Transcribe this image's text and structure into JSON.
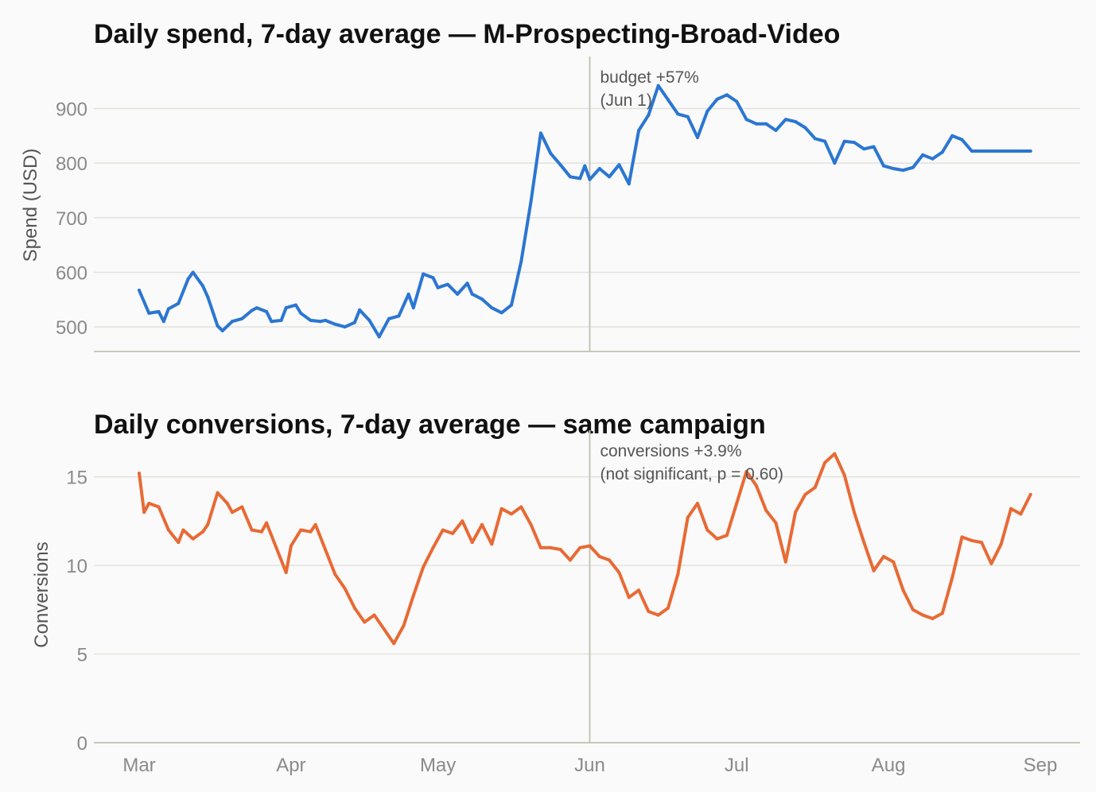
{
  "colors": {
    "spend": "#2b76d2",
    "conversions": "#e86a35"
  },
  "chart_data": [
    {
      "type": "line",
      "title": "Daily spend, 7-day average — M-Prospecting-Broad-Video",
      "ylabel": "Spend (USD)",
      "xlabel": "",
      "ylim": [
        455,
        975
      ],
      "yticks": [
        500,
        600,
        700,
        800,
        900
      ],
      "xlim": [
        "2024-03-01",
        "2024-09-01"
      ],
      "xticks": [],
      "grid": true,
      "annotation": {
        "x": "2024-06-01",
        "lines": [
          "budget +57%",
          "(Jun 1)"
        ]
      },
      "series": [
        {
          "x": [
            "2024-03-01",
            "2024-03-03",
            "2024-03-05",
            "2024-03-06",
            "2024-03-07",
            "2024-03-09",
            "2024-03-11",
            "2024-03-12",
            "2024-03-14",
            "2024-03-15",
            "2024-03-17",
            "2024-03-18",
            "2024-03-20",
            "2024-03-22",
            "2024-03-24",
            "2024-03-25",
            "2024-03-27",
            "2024-03-28",
            "2024-03-30",
            "2024-03-31",
            "2024-04-02",
            "2024-04-03",
            "2024-04-05",
            "2024-04-07",
            "2024-04-08",
            "2024-04-10",
            "2024-04-12",
            "2024-04-14",
            "2024-04-15",
            "2024-04-17",
            "2024-04-19",
            "2024-04-21",
            "2024-04-23",
            "2024-04-25",
            "2024-04-26",
            "2024-04-28",
            "2024-04-30",
            "2024-05-01",
            "2024-05-03",
            "2024-05-05",
            "2024-05-07",
            "2024-05-08",
            "2024-05-10",
            "2024-05-12",
            "2024-05-14",
            "2024-05-16",
            "2024-05-18",
            "2024-05-20",
            "2024-05-22",
            "2024-05-24",
            "2024-05-26",
            "2024-05-28",
            "2024-05-30",
            "2024-05-31",
            "2024-06-01",
            "2024-06-03",
            "2024-06-05",
            "2024-06-07",
            "2024-06-09",
            "2024-06-11",
            "2024-06-13",
            "2024-06-15",
            "2024-06-17",
            "2024-06-19",
            "2024-06-21",
            "2024-06-23",
            "2024-06-25",
            "2024-06-27",
            "2024-06-29",
            "2024-07-01",
            "2024-07-03",
            "2024-07-05",
            "2024-07-07",
            "2024-07-09",
            "2024-07-11",
            "2024-07-13",
            "2024-07-15",
            "2024-07-17",
            "2024-07-19",
            "2024-07-21",
            "2024-07-23",
            "2024-07-25",
            "2024-07-27",
            "2024-07-29",
            "2024-07-31",
            "2024-08-02",
            "2024-08-04",
            "2024-08-06",
            "2024-08-08",
            "2024-08-10",
            "2024-08-12",
            "2024-08-14",
            "2024-08-16",
            "2024-08-18",
            "2024-08-20",
            "2024-08-22",
            "2024-08-24",
            "2024-08-26",
            "2024-08-28",
            "2024-08-30"
          ],
          "y": [
            567,
            525,
            528,
            510,
            533,
            543,
            588,
            600,
            575,
            555,
            502,
            493,
            510,
            515,
            530,
            535,
            528,
            510,
            512,
            535,
            540,
            525,
            512,
            510,
            512,
            505,
            500,
            508,
            531,
            512,
            482,
            515,
            520,
            560,
            535,
            597,
            590,
            572,
            578,
            560,
            580,
            560,
            551,
            535,
            526,
            540,
            620,
            730,
            855,
            818,
            797,
            775,
            772,
            795,
            770,
            790,
            775,
            797,
            762,
            860,
            888,
            942,
            916,
            890,
            885,
            847,
            895,
            917,
            925,
            913,
            880,
            872,
            872,
            860,
            880,
            876,
            865,
            845,
            840,
            800,
            840,
            838,
            826,
            830,
            795,
            790,
            787,
            792,
            815,
            808,
            820,
            850,
            843,
            822,
            822,
            822,
            822,
            822,
            822,
            822
          ]
        }
      ]
    },
    {
      "type": "line",
      "title": "Daily conversions, 7-day average — same campaign",
      "ylabel": "Conversions",
      "xlabel": "",
      "ylim": [
        0,
        17
      ],
      "yticks": [
        0,
        5,
        10,
        15
      ],
      "xlim": [
        "2024-03-01",
        "2024-09-01"
      ],
      "xticks": [
        "Mar",
        "Apr",
        "May",
        "Jun",
        "Jul",
        "Aug",
        "Sep"
      ],
      "grid": true,
      "annotation": {
        "x": "2024-06-01",
        "lines": [
          "conversions +3.9%",
          "(not significant, p = 0.60)"
        ]
      },
      "series": [
        {
          "x": [
            "2024-03-01",
            "2024-03-02",
            "2024-03-03",
            "2024-03-05",
            "2024-03-07",
            "2024-03-09",
            "2024-03-10",
            "2024-03-12",
            "2024-03-14",
            "2024-03-15",
            "2024-03-17",
            "2024-03-19",
            "2024-03-20",
            "2024-03-22",
            "2024-03-24",
            "2024-03-26",
            "2024-03-27",
            "2024-03-29",
            "2024-03-31",
            "2024-04-01",
            "2024-04-03",
            "2024-04-05",
            "2024-04-06",
            "2024-04-08",
            "2024-04-10",
            "2024-04-12",
            "2024-04-14",
            "2024-04-16",
            "2024-04-18",
            "2024-04-20",
            "2024-04-22",
            "2024-04-24",
            "2024-04-26",
            "2024-04-28",
            "2024-04-30",
            "2024-05-02",
            "2024-05-04",
            "2024-05-06",
            "2024-05-08",
            "2024-05-10",
            "2024-05-12",
            "2024-05-14",
            "2024-05-16",
            "2024-05-18",
            "2024-05-20",
            "2024-05-22",
            "2024-05-24",
            "2024-05-26",
            "2024-05-28",
            "2024-05-30",
            "2024-06-01",
            "2024-06-03",
            "2024-06-05",
            "2024-06-07",
            "2024-06-09",
            "2024-06-11",
            "2024-06-13",
            "2024-06-15",
            "2024-06-17",
            "2024-06-19",
            "2024-06-21",
            "2024-06-23",
            "2024-06-25",
            "2024-06-27",
            "2024-06-29",
            "2024-07-01",
            "2024-07-03",
            "2024-07-05",
            "2024-07-07",
            "2024-07-09",
            "2024-07-11",
            "2024-07-13",
            "2024-07-15",
            "2024-07-17",
            "2024-07-19",
            "2024-07-21",
            "2024-07-23",
            "2024-07-25",
            "2024-07-27",
            "2024-07-29",
            "2024-07-31",
            "2024-08-02",
            "2024-08-04",
            "2024-08-06",
            "2024-08-08",
            "2024-08-10",
            "2024-08-12",
            "2024-08-14",
            "2024-08-16",
            "2024-08-18",
            "2024-08-20",
            "2024-08-22",
            "2024-08-24",
            "2024-08-26",
            "2024-08-28",
            "2024-08-30"
          ],
          "y": [
            15.2,
            13.0,
            13.5,
            13.3,
            12.0,
            11.3,
            12.0,
            11.5,
            11.9,
            12.3,
            14.1,
            13.5,
            13.0,
            13.3,
            12.0,
            11.9,
            12.4,
            11.0,
            9.6,
            11.1,
            12.0,
            11.9,
            12.3,
            10.9,
            9.5,
            8.7,
            7.6,
            6.8,
            7.2,
            6.4,
            5.6,
            6.6,
            8.3,
            9.9,
            11.0,
            12.0,
            11.8,
            12.5,
            11.3,
            12.3,
            11.2,
            13.2,
            12.9,
            13.3,
            12.3,
            11.0,
            11.0,
            10.9,
            10.3,
            11.0,
            11.1,
            10.5,
            10.3,
            9.6,
            8.2,
            8.6,
            7.4,
            7.2,
            7.6,
            9.5,
            12.7,
            13.5,
            12.0,
            11.5,
            11.7,
            13.5,
            15.3,
            14.5,
            13.1,
            12.4,
            10.2,
            13.0,
            14.0,
            14.4,
            15.8,
            16.3,
            15.1,
            13.0,
            11.3,
            9.7,
            10.5,
            10.2,
            8.6,
            7.5,
            7.2,
            7.0,
            7.3,
            9.3,
            11.6,
            11.4,
            11.3,
            10.1,
            11.2,
            13.2,
            12.9,
            14.0
          ]
        }
      ]
    }
  ]
}
